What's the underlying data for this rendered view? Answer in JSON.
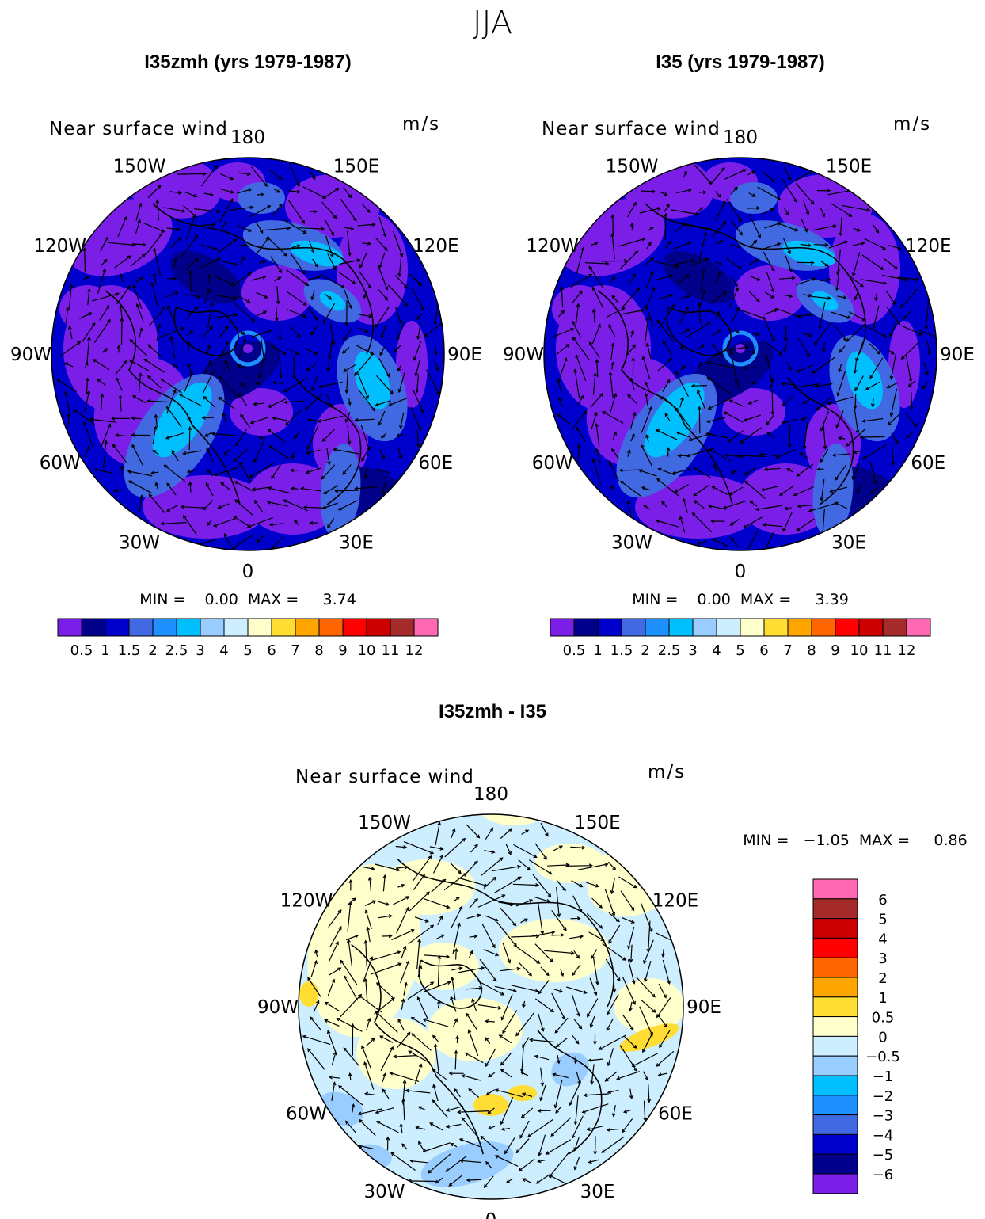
{
  "page_title": "JJA",
  "colors": {
    "abs_scale": [
      "#7b1fe8",
      "#00008b",
      "#0000cd",
      "#4169e1",
      "#1e90ff",
      "#00bfff",
      "#99ccff",
      "#cceeff",
      "#ffffcc",
      "#ffdd33",
      "#ffa500",
      "#ff6600",
      "#ff0000",
      "#cc0000",
      "#a52a2a",
      "#ff69b4"
    ],
    "diff_scale": [
      "#7b1fe8",
      "#00008b",
      "#0000cd",
      "#4169e1",
      "#1e90ff",
      "#00bfff",
      "#99ccff",
      "#cceeff",
      "#ffffcc",
      "#ffdd33",
      "#ffa500",
      "#ff6600",
      "#ff0000",
      "#cc0000",
      "#a52a2a",
      "#ff69b4"
    ]
  },
  "panels": [
    {
      "id": "left",
      "title": "I35zmh (yrs 1979-1987)",
      "variable": "Near surface wind",
      "units": "m/s",
      "stats": "MIN =    0.00  MAX =     3.74",
      "legend_labels": [
        "0.5",
        "1",
        "1.5",
        "2",
        "2.5",
        "3",
        "4",
        "5",
        "6",
        "7",
        "8",
        "9",
        "10",
        "11",
        "12"
      ]
    },
    {
      "id": "right",
      "title": "I35 (yrs 1979-1987)",
      "variable": "Near surface wind",
      "units": "m/s",
      "stats": "MIN =    0.00  MAX =     3.39",
      "legend_labels": [
        "0.5",
        "1",
        "1.5",
        "2",
        "2.5",
        "3",
        "4",
        "5",
        "6",
        "7",
        "8",
        "9",
        "10",
        "11",
        "12"
      ]
    },
    {
      "id": "diff",
      "title": "I35zmh - I35",
      "variable": "Near surface wind",
      "units": "m/s",
      "stats": "MIN =   −1.05  MAX =     0.86",
      "legend_labels": [
        "6",
        "5",
        "4",
        "3",
        "2",
        "1",
        "0.5",
        "0",
        "−0.5",
        "−1",
        "−2",
        "−3",
        "−4",
        "−5",
        "−6"
      ]
    }
  ],
  "longitude_labels": [
    "180",
    "150E",
    "120E",
    "90E",
    "60E",
    "30E",
    "0",
    "30W",
    "60W",
    "90W",
    "120W",
    "150W"
  ]
}
